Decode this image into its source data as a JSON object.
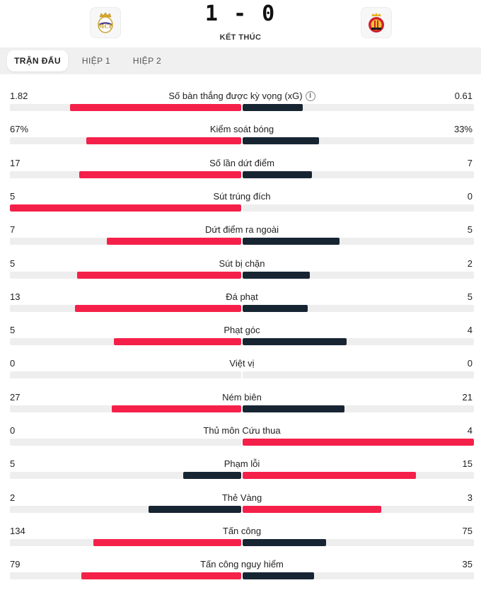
{
  "match": {
    "score": "1 - 0",
    "status": "KẾT THÚC",
    "home_crest": "real-madrid-crest",
    "away_crest": "mallorca-crest"
  },
  "tabs": [
    {
      "label": "TRẬN ĐẤU",
      "active": true
    },
    {
      "label": "HIỆP 1",
      "active": false
    },
    {
      "label": "HIỆP 2",
      "active": false
    }
  ],
  "colors": {
    "primary": "#f5204a",
    "dark": "#172533",
    "track": "#eeeeee"
  },
  "stats": [
    {
      "label": "Số bàn thắng được kỳ vọng (xG)",
      "left": "1.82",
      "right": "0.61",
      "info": true,
      "left_share": 0.74,
      "right_share": 0.26,
      "highlight": "left"
    },
    {
      "label": "Kiểm soát bóng",
      "left": "67%",
      "right": "33%",
      "left_share": 0.67,
      "right_share": 0.33,
      "highlight": "left"
    },
    {
      "label": "Số lần dứt điểm",
      "left": "17",
      "right": "7",
      "left_share": 0.7,
      "right_share": 0.3,
      "highlight": "left"
    },
    {
      "label": "Sút trúng đích",
      "left": "5",
      "right": "0",
      "left_share": 1.0,
      "right_share": 0.0,
      "highlight": "left"
    },
    {
      "label": "Dứt điểm ra ngoài",
      "left": "7",
      "right": "5",
      "left_share": 0.58,
      "right_share": 0.42,
      "highlight": "left"
    },
    {
      "label": "Sút bị chặn",
      "left": "5",
      "right": "2",
      "left_share": 0.71,
      "right_share": 0.29,
      "highlight": "left"
    },
    {
      "label": "Đá phạt",
      "left": "13",
      "right": "5",
      "left_share": 0.72,
      "right_share": 0.28,
      "highlight": "left"
    },
    {
      "label": "Phạt góc",
      "left": "5",
      "right": "4",
      "left_share": 0.55,
      "right_share": 0.45,
      "highlight": "left"
    },
    {
      "label": "Việt vị",
      "left": "0",
      "right": "0",
      "left_share": 0.0,
      "right_share": 0.0,
      "highlight": "left"
    },
    {
      "label": "Ném biên",
      "left": "27",
      "right": "21",
      "left_share": 0.56,
      "right_share": 0.44,
      "highlight": "left"
    },
    {
      "label": "Thủ môn Cứu thua",
      "left": "0",
      "right": "4",
      "left_share": 0.0,
      "right_share": 1.0,
      "highlight": "right"
    },
    {
      "label": "Phạm lỗi",
      "left": "5",
      "right": "15",
      "left_share": 0.25,
      "right_share": 0.75,
      "highlight": "right"
    },
    {
      "label": "Thẻ Vàng",
      "left": "2",
      "right": "3",
      "left_share": 0.4,
      "right_share": 0.6,
      "highlight": "right"
    },
    {
      "label": "Tấn công",
      "left": "134",
      "right": "75",
      "left_share": 0.64,
      "right_share": 0.36,
      "highlight": "left"
    },
    {
      "label": "Tấn công nguy hiểm",
      "left": "79",
      "right": "35",
      "left_share": 0.69,
      "right_share": 0.31,
      "highlight": "left"
    }
  ]
}
